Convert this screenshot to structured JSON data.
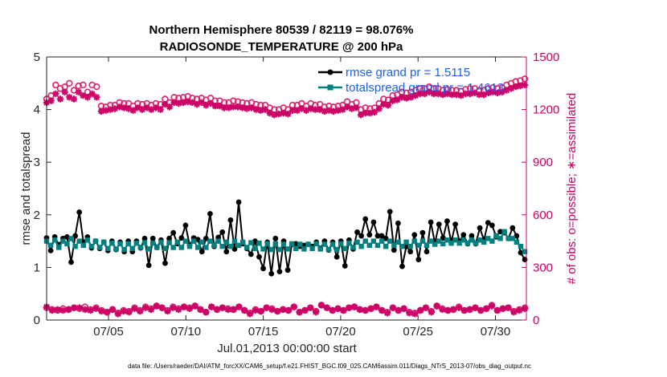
{
  "chart_data": {
    "type": "line",
    "title": "Northern Hemisphere 80539 / 82119 = 98.076%",
    "subtitle": "RADIOSONDE_TEMPERATURE @ 200 hPa",
    "xlabel": "Jul.01,2013 00:00:00 start",
    "ylabel": "rmse and totalspread",
    "ylabel_right": "# of obs: o=possible; ∗=assimilated",
    "x_ticks": [
      "07/05",
      "07/10",
      "07/15",
      "07/20",
      "07/25",
      "07/30"
    ],
    "x_tick_days": [
      5,
      10,
      15,
      20,
      25,
      30
    ],
    "xlim": [
      1,
      32
    ],
    "ylim": [
      0,
      5
    ],
    "y_ticks": [
      "0",
      "1",
      "2",
      "3",
      "4",
      "5"
    ],
    "ylim_right": [
      0,
      1500
    ],
    "y_ticks_right": [
      "0",
      "300",
      "600",
      "900",
      "1200",
      "1500"
    ],
    "legend_position": "top-right",
    "series": [
      {
        "name": "rmse",
        "legend": "rmse grand pr = 1.5115",
        "color": "#000000",
        "axis": "left",
        "values": [
          1.56,
          1.32,
          1.58,
          1.43,
          1.55,
          1.58,
          1.1,
          1.6,
          2.05,
          1.48,
          1.58,
          1.37,
          1.5,
          1.36,
          1.48,
          1.32,
          1.5,
          1.34,
          1.48,
          1.3,
          1.5,
          1.3,
          1.5,
          1.37,
          1.55,
          1.04,
          1.55,
          1.38,
          1.52,
          1.08,
          1.55,
          1.66,
          1.45,
          1.56,
          1.8,
          1.42,
          1.56,
          1.53,
          1.3,
          1.55,
          2.02,
          1.4,
          1.57,
          1.67,
          1.3,
          1.9,
          1.35,
          2.24,
          1.45,
          1.36,
          1.25,
          1.5,
          1.2,
          0.98,
          1.48,
          0.88,
          1.55,
          0.92,
          1.5,
          0.95,
          1.44,
          1.45,
          1.4,
          1.42,
          1.44,
          1.4,
          1.48,
          1.36,
          1.5,
          1.33,
          1.48,
          1.2,
          1.5,
          1.03,
          1.52,
          1.35,
          1.67,
          1.6,
          1.92,
          1.62,
          1.86,
          1.6,
          1.6,
          1.55,
          2.06,
          1.33,
          1.84,
          1.02,
          1.4,
          1.3,
          1.62,
          1.15,
          1.66,
          1.3,
          1.86,
          1.46,
          1.82,
          1.56,
          1.88,
          1.48,
          1.82,
          1.5,
          1.62,
          1.45,
          1.6,
          1.45,
          1.75,
          1.52,
          1.85,
          1.8,
          1.58,
          1.68,
          1.66,
          1.55,
          1.75,
          1.6,
          1.28,
          1.15
        ]
      },
      {
        "name": "totalspread",
        "legend": "totalspread grand pr = 1.4613",
        "color": "#008080",
        "axis": "left",
        "values": [
          1.5,
          1.42,
          1.52,
          1.38,
          1.5,
          1.45,
          1.55,
          1.4,
          1.5,
          1.42,
          1.52,
          1.4,
          1.5,
          1.38,
          1.48,
          1.36,
          1.46,
          1.35,
          1.45,
          1.34,
          1.45,
          1.36,
          1.46,
          1.38,
          1.47,
          1.35,
          1.46,
          1.38,
          1.48,
          1.36,
          1.47,
          1.38,
          1.48,
          1.38,
          1.5,
          1.4,
          1.5,
          1.38,
          1.48,
          1.38,
          1.5,
          1.42,
          1.5,
          1.4,
          1.48,
          1.4,
          1.5,
          1.42,
          1.48,
          1.38,
          1.47,
          1.36,
          1.46,
          1.35,
          1.45,
          1.34,
          1.45,
          1.34,
          1.44,
          1.35,
          1.45,
          1.36,
          1.44,
          1.35,
          1.44,
          1.36,
          1.45,
          1.35,
          1.44,
          1.34,
          1.44,
          1.34,
          1.45,
          1.36,
          1.46,
          1.38,
          1.48,
          1.4,
          1.5,
          1.42,
          1.5,
          1.42,
          1.5,
          1.4,
          1.5,
          1.42,
          1.48,
          1.4,
          1.48,
          1.4,
          1.5,
          1.42,
          1.5,
          1.42,
          1.5,
          1.44,
          1.5,
          1.45,
          1.52,
          1.46,
          1.52,
          1.46,
          1.52,
          1.46,
          1.52,
          1.46,
          1.52,
          1.48,
          1.55,
          1.5,
          1.6,
          1.55,
          1.68,
          1.55,
          1.55,
          1.48,
          1.4,
          1.3
        ]
      },
      {
        "name": "possible",
        "marker": "o",
        "color": "#e0206b",
        "axis": "right",
        "values": [
          1260,
          1280,
          1340,
          1320,
          1330,
          1350,
          1310,
          1335,
          1340,
          1300,
          1340,
          1330,
          1220,
          1215,
          1225,
          1225,
          1240,
          1235,
          1235,
          1220,
          1235,
          1230,
          1235,
          1225,
          1235,
          1230,
          1260,
          1240,
          1270,
          1265,
          1270,
          1275,
          1265,
          1260,
          1265,
          1255,
          1265,
          1250,
          1250,
          1240,
          1240,
          1250,
          1245,
          1240,
          1235,
          1240,
          1230,
          1225,
          1225,
          1210,
          1200,
          1200,
          1210,
          1200,
          1225,
          1225,
          1235,
          1220,
          1235,
          1225,
          1230,
          1215,
          1220,
          1215,
          1220,
          1225,
          1245,
          1230,
          1240,
          1200,
          1210,
          1205,
          1210,
          1235,
          1260,
          1255,
          1280,
          1285,
          1300,
          1295,
          1300,
          1310,
          1320,
          1320,
          1330,
          1320,
          1320,
          1310,
          1315,
          1310,
          1310,
          1305,
          1315,
          1320,
          1320,
          1310,
          1310,
          1320,
          1325,
          1320,
          1325,
          1340,
          1350,
          1360,
          1365,
          1375
        ]
      },
      {
        "name": "assimilated",
        "marker": "∗",
        "color": "#cc0066",
        "axis": "right",
        "values": [
          1240,
          1250,
          1290,
          1260,
          1300,
          1270,
          1260,
          1300,
          1280,
          1270,
          1290,
          1270,
          1190,
          1195,
          1200,
          1205,
          1215,
          1210,
          1205,
          1195,
          1210,
          1200,
          1210,
          1200,
          1210,
          1200,
          1230,
          1215,
          1240,
          1235,
          1240,
          1245,
          1240,
          1230,
          1240,
          1225,
          1235,
          1220,
          1220,
          1210,
          1210,
          1215,
          1215,
          1210,
          1205,
          1210,
          1200,
          1195,
          1200,
          1180,
          1170,
          1175,
          1180,
          1175,
          1195,
          1195,
          1205,
          1195,
          1205,
          1200,
          1200,
          1190,
          1195,
          1190,
          1195,
          1200,
          1215,
          1205,
          1210,
          1170,
          1180,
          1180,
          1185,
          1205,
          1230,
          1225,
          1250,
          1255,
          1270,
          1265,
          1270,
          1280,
          1290,
          1290,
          1300,
          1290,
          1290,
          1285,
          1290,
          1285,
          1285,
          1280,
          1290,
          1290,
          1295,
          1285,
          1285,
          1295,
          1300,
          1295,
          1300,
          1310,
          1320,
          1330,
          1335,
          1340
        ]
      },
      {
        "name": "low_possible",
        "marker": "o",
        "color": "#e0206b",
        "axis": "right",
        "values": [
          70,
          60,
          55,
          65,
          60,
          70,
          65,
          75,
          60,
          70,
          55,
          45,
          60,
          40,
          55,
          50,
          70,
          55,
          75,
          65,
          80,
          70,
          55,
          75,
          65,
          75,
          70,
          80,
          60,
          45,
          75,
          60,
          70,
          65,
          60,
          75,
          55,
          40,
          60,
          50,
          70,
          65,
          50,
          60,
          55,
          75,
          45,
          55,
          70,
          50,
          85,
          70,
          55,
          65,
          55,
          70,
          75,
          60,
          55,
          65,
          75,
          55,
          45,
          70,
          55,
          65,
          45,
          40,
          55,
          70,
          50,
          80,
          65,
          55,
          60,
          75,
          55,
          60,
          70,
          55,
          65,
          85,
          55,
          65,
          70,
          50,
          60,
          70
        ]
      },
      {
        "name": "low_assimilated",
        "marker": "∗",
        "color": "#cc0066",
        "axis": "right",
        "values": [
          75,
          55,
          60,
          55,
          60,
          70,
          70,
          60,
          55,
          65,
          50,
          45,
          60,
          35,
          50,
          45,
          65,
          50,
          70,
          60,
          80,
          70,
          50,
          70,
          60,
          75,
          65,
          80,
          60,
          45,
          75,
          60,
          70,
          60,
          60,
          75,
          55,
          35,
          55,
          50,
          70,
          60,
          50,
          60,
          55,
          75,
          45,
          55,
          70,
          45,
          85,
          70,
          55,
          65,
          55,
          70,
          75,
          60,
          55,
          65,
          75,
          55,
          40,
          70,
          55,
          65,
          40,
          35,
          55,
          70,
          45,
          80,
          60,
          55,
          60,
          70,
          55,
          60,
          70,
          55,
          65,
          80,
          55,
          65,
          70,
          45,
          55,
          65
        ]
      }
    ]
  },
  "footer": {
    "text": "data file: /Users/raeder/DAI/ATM_forcXX/CAM6_setup/f.e21.FHIST_BGC.f09_025.CAM6assim.011/Diags_NTrS_2013-07/obs_diag_output.nc"
  },
  "colors": {
    "rmse": "#000000",
    "spread": "#008080",
    "obs": "#cc0066",
    "legend_text": "#1a5ff0"
  }
}
